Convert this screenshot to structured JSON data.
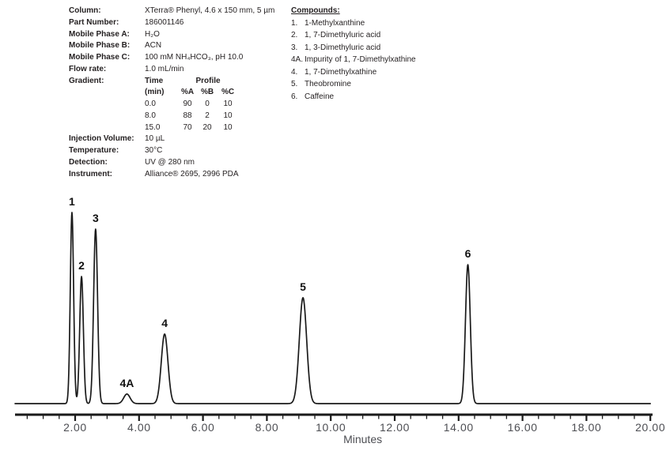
{
  "method": {
    "rows": [
      {
        "label": "Column:",
        "value": "XTerra® Phenyl, 4.6 x 150 mm, 5 µm"
      },
      {
        "label": "Part Number:",
        "value": "186001146"
      },
      {
        "label": "Mobile Phase A:",
        "value": "H₂O"
      },
      {
        "label": "Mobile Phase B:",
        "value": "ACN"
      },
      {
        "label": "Mobile Phase C:",
        "value": "100 mM NH₄HCO₃, pH 10.0"
      },
      {
        "label": "Flow rate:",
        "value": "1.0 mL/min"
      }
    ],
    "gradient": {
      "label": "Gradient:",
      "time_header": "Time",
      "profile_header": "Profile",
      "col_headers": [
        "(min)",
        "%A",
        "%B",
        "%C"
      ],
      "rows": [
        [
          "0.0",
          "90",
          "0",
          "10"
        ],
        [
          "8.0",
          "88",
          "2",
          "10"
        ],
        [
          "15.0",
          "70",
          "20",
          "10"
        ]
      ]
    },
    "rows2": [
      {
        "label": "Injection Volume:",
        "value": "10 µL"
      },
      {
        "label": "Temperature:",
        "value": "30°C"
      },
      {
        "label": "Detection:",
        "value": "UV @ 280 nm"
      },
      {
        "label": "Instrument:",
        "value": "Alliance® 2695, 2996 PDA"
      }
    ]
  },
  "compounds": {
    "title": "Compounds:",
    "items": [
      {
        "num": "1.",
        "name": "1-Methylxanthine"
      },
      {
        "num": "2.",
        "name": "1, 7-Dimethyluric acid"
      },
      {
        "num": "3.",
        "name": "1, 3-Dimethyluric acid"
      },
      {
        "num": "4A.",
        "name": "Impurity of 1, 7-Dimethylxathine"
      },
      {
        "num": "4.",
        "name": "1, 7-Dimethylxathine"
      },
      {
        "num": "5.",
        "name": "Theobromine"
      },
      {
        "num": "6.",
        "name": "Caffeine"
      }
    ]
  },
  "colors": {
    "text": "#231f20",
    "trace": "#1a1a1a",
    "axis": "#1a1a1a",
    "tick_label": "#4d4e53",
    "peak_label": "#111111"
  },
  "chart_data": {
    "type": "line",
    "title": "",
    "xlabel": "Minutes",
    "ylabel": "",
    "xlim": [
      0.12,
      20.0
    ],
    "ylim": [
      0,
      1.12
    ],
    "grid": false,
    "legend": "none",
    "x_major_ticks": [
      2,
      4,
      6,
      8,
      10,
      12,
      14,
      16,
      18,
      20
    ],
    "x_tick_labels": [
      "2.00",
      "4.00",
      "6.00",
      "8.00",
      "10.00",
      "12.00",
      "14.00",
      "16.00",
      "18.00",
      "20.00"
    ],
    "x_minor_tick_interval": 0.5,
    "baseline_value": 0.0,
    "peaks": [
      {
        "label": "1",
        "compound": "1-Methylxanthine",
        "rt_min": 1.9,
        "height_rel": 1.0,
        "sigma_min": 0.052
      },
      {
        "label": "2",
        "compound": "1, 7-Dimethyluric acid",
        "rt_min": 2.2,
        "height_rel": 0.665,
        "sigma_min": 0.057
      },
      {
        "label": "3",
        "compound": "1, 3-Dimethyluric acid",
        "rt_min": 2.64,
        "height_rel": 0.913,
        "sigma_min": 0.062
      },
      {
        "label": "4A",
        "compound": "Impurity of 1, 7-Dimethylxathine",
        "rt_min": 3.62,
        "height_rel": 0.05,
        "sigma_min": 0.1
      },
      {
        "label": "4",
        "compound": "1, 7-Dimethylxathine",
        "rt_min": 4.8,
        "height_rel": 0.364,
        "sigma_min": 0.104
      },
      {
        "label": "5",
        "compound": "Theobromine",
        "rt_min": 9.13,
        "height_rel": 0.554,
        "sigma_min": 0.115
      },
      {
        "label": "6",
        "compound": "Caffeine",
        "rt_min": 14.29,
        "height_rel": 0.727,
        "sigma_min": 0.075
      }
    ]
  }
}
